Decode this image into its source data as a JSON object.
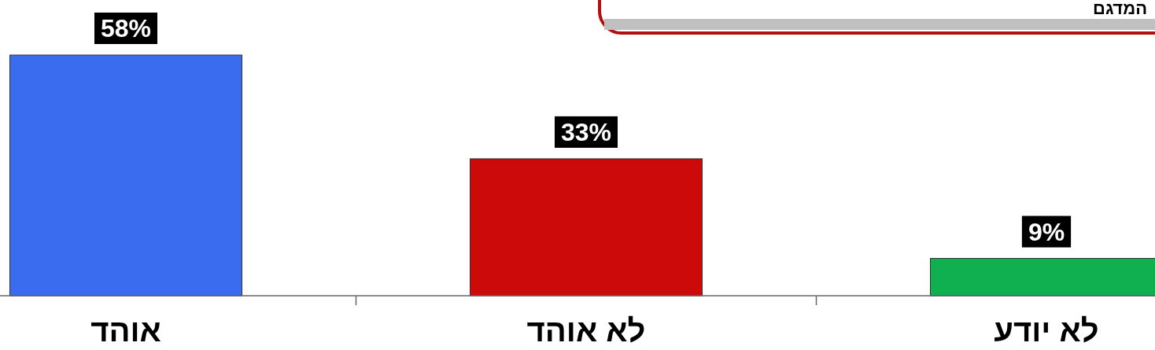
{
  "chart_data": {
    "type": "bar",
    "title": "המדגם",
    "categories": [
      "אוהד",
      "לא אוהד",
      "לא יודע"
    ],
    "values": [
      58,
      33,
      9
    ],
    "colors": [
      "#3a6cf0",
      "#cc0a0a",
      "#10b050"
    ],
    "value_labels": [
      "58%",
      "33%",
      "9%"
    ]
  }
}
